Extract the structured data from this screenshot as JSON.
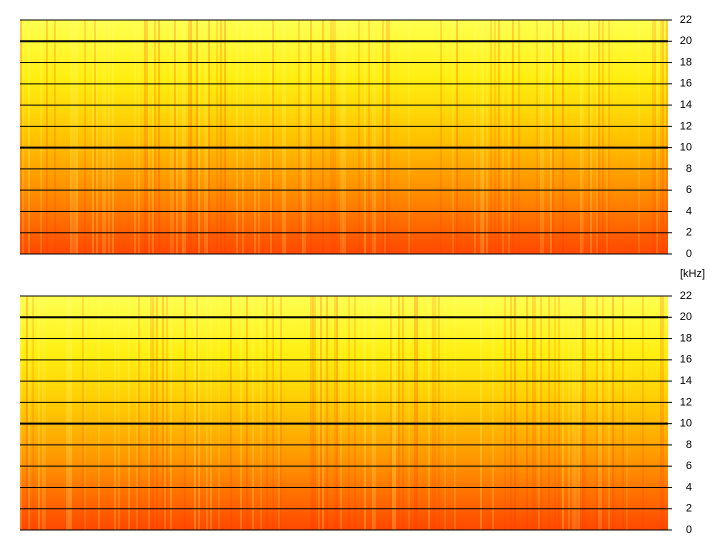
{
  "chart_data": [
    {
      "type": "spectrogram",
      "ylabel": "[kHz]",
      "ylim": [
        0,
        22
      ],
      "yticks": [
        0,
        2,
        4,
        6,
        8,
        10,
        12,
        14,
        16,
        18,
        20,
        22
      ],
      "grid": true,
      "colors": [
        "#ff4800",
        "#ff8a00",
        "#ffc400",
        "#ffef10",
        "#ffff50"
      ]
    },
    {
      "type": "spectrogram",
      "ylim": [
        0,
        22
      ],
      "yticks": [
        0,
        2,
        4,
        6,
        8,
        10,
        12,
        14,
        16,
        18,
        20,
        22
      ],
      "grid": true,
      "colors": [
        "#ff4800",
        "#ff8a00",
        "#ffc400",
        "#ffef10",
        "#ffff50"
      ]
    }
  ]
}
